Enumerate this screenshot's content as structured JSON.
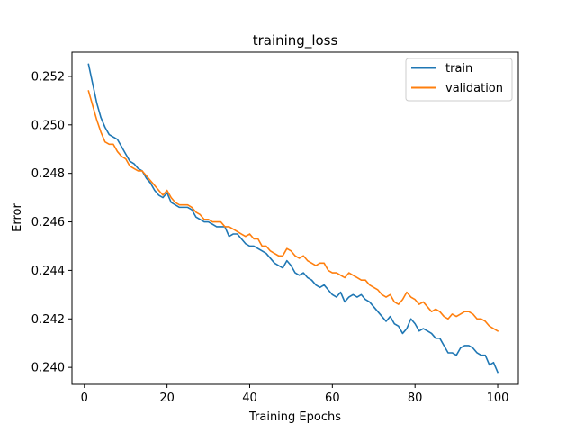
{
  "chart_data": {
    "type": "line",
    "title": "training_loss",
    "xlabel": "Training Epochs",
    "ylabel": "Error",
    "xlim": [
      -3,
      105
    ],
    "ylim": [
      0.2393,
      0.253
    ],
    "xticks": [
      0,
      20,
      40,
      60,
      80,
      100
    ],
    "yticks": [
      0.24,
      0.242,
      0.244,
      0.246,
      0.248,
      0.25,
      0.252
    ],
    "ytick_labels": [
      "0.240",
      "0.242",
      "0.244",
      "0.246",
      "0.248",
      "0.250",
      "0.252"
    ],
    "grid": false,
    "legend": "top-right",
    "x": [
      1,
      2,
      3,
      4,
      5,
      6,
      7,
      8,
      9,
      10,
      11,
      12,
      13,
      14,
      15,
      16,
      17,
      18,
      19,
      20,
      21,
      22,
      23,
      24,
      25,
      26,
      27,
      28,
      29,
      30,
      31,
      32,
      33,
      34,
      35,
      36,
      37,
      38,
      39,
      40,
      41,
      42,
      43,
      44,
      45,
      46,
      47,
      48,
      49,
      50,
      51,
      52,
      53,
      54,
      55,
      56,
      57,
      58,
      59,
      60,
      61,
      62,
      63,
      64,
      65,
      66,
      67,
      68,
      69,
      70,
      71,
      72,
      73,
      74,
      75,
      76,
      77,
      78,
      79,
      80,
      81,
      82,
      83,
      84,
      85,
      86,
      87,
      88,
      89,
      90,
      91,
      92,
      93,
      94,
      95,
      96,
      97,
      98,
      99,
      100
    ],
    "series": [
      {
        "name": "train",
        "color": "#1f77b4",
        "values": [
          0.2525,
          0.2517,
          0.2509,
          0.2503,
          0.2499,
          0.2496,
          0.2495,
          0.2494,
          0.2491,
          0.2488,
          0.2485,
          0.2484,
          0.2482,
          0.2481,
          0.2478,
          0.2476,
          0.2473,
          0.2471,
          0.247,
          0.2472,
          0.2468,
          0.2467,
          0.2466,
          0.2466,
          0.2466,
          0.2465,
          0.2462,
          0.2461,
          0.246,
          0.246,
          0.2459,
          0.2458,
          0.2458,
          0.2458,
          0.2454,
          0.2455,
          0.2455,
          0.2453,
          0.2451,
          0.245,
          0.245,
          0.2449,
          0.2448,
          0.2447,
          0.2445,
          0.2443,
          0.2442,
          0.2441,
          0.2444,
          0.2442,
          0.2439,
          0.2438,
          0.2439,
          0.2437,
          0.2436,
          0.2434,
          0.2433,
          0.2434,
          0.2432,
          0.243,
          0.2429,
          0.2431,
          0.2427,
          0.2429,
          0.243,
          0.2429,
          0.243,
          0.2428,
          0.2427,
          0.2425,
          0.2423,
          0.2421,
          0.2419,
          0.2421,
          0.2418,
          0.2417,
          0.2414,
          0.2416,
          0.242,
          0.2418,
          0.2415,
          0.2416,
          0.2415,
          0.2414,
          0.2412,
          0.2412,
          0.2409,
          0.2406,
          0.2406,
          0.2405,
          0.2408,
          0.2409,
          0.2409,
          0.2408,
          0.2406,
          0.2405,
          0.2405,
          0.2401,
          0.2402,
          0.2398
        ]
      },
      {
        "name": "validation",
        "color": "#ff7f0e",
        "values": [
          0.2514,
          0.2508,
          0.2502,
          0.2497,
          0.2493,
          0.2492,
          0.2492,
          0.2489,
          0.2487,
          0.2486,
          0.2483,
          0.2482,
          0.2481,
          0.2481,
          0.2479,
          0.2477,
          0.2475,
          0.2473,
          0.2471,
          0.2473,
          0.247,
          0.2468,
          0.2467,
          0.2467,
          0.2467,
          0.2466,
          0.2464,
          0.2463,
          0.2461,
          0.2461,
          0.246,
          0.246,
          0.246,
          0.2458,
          0.2458,
          0.2457,
          0.2456,
          0.2455,
          0.2454,
          0.2455,
          0.2453,
          0.2453,
          0.245,
          0.245,
          0.2448,
          0.2447,
          0.2446,
          0.2446,
          0.2449,
          0.2448,
          0.2446,
          0.2445,
          0.2446,
          0.2444,
          0.2443,
          0.2442,
          0.2443,
          0.2443,
          0.244,
          0.2439,
          0.2439,
          0.2438,
          0.2437,
          0.2439,
          0.2438,
          0.2437,
          0.2436,
          0.2436,
          0.2434,
          0.2433,
          0.2432,
          0.243,
          0.2429,
          0.243,
          0.2427,
          0.2426,
          0.2428,
          0.2431,
          0.2429,
          0.2428,
          0.2426,
          0.2427,
          0.2425,
          0.2423,
          0.2424,
          0.2423,
          0.2421,
          0.242,
          0.2422,
          0.2421,
          0.2422,
          0.2423,
          0.2423,
          0.2422,
          0.242,
          0.242,
          0.2419,
          0.2417,
          0.2416,
          0.2415
        ]
      }
    ]
  }
}
